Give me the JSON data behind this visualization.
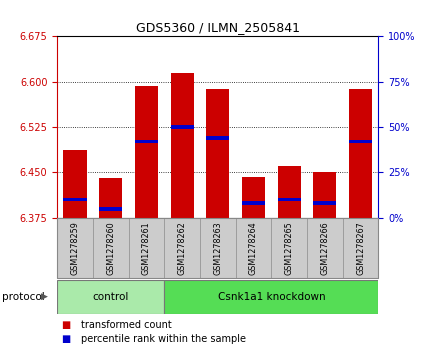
{
  "title": "GDS5360 / ILMN_2505841",
  "samples": [
    "GSM1278259",
    "GSM1278260",
    "GSM1278261",
    "GSM1278262",
    "GSM1278263",
    "GSM1278264",
    "GSM1278265",
    "GSM1278266",
    "GSM1278267"
  ],
  "transformed_counts": [
    6.487,
    6.44,
    6.593,
    6.614,
    6.588,
    6.443,
    6.461,
    6.45,
    6.588
  ],
  "percentile_ranks": [
    10,
    5,
    42,
    50,
    44,
    8,
    10,
    8,
    42
  ],
  "y_min": 6.375,
  "y_max": 6.675,
  "y_ticks": [
    6.375,
    6.45,
    6.525,
    6.6,
    6.675
  ],
  "right_y_ticks": [
    0,
    25,
    50,
    75,
    100
  ],
  "bar_color": "#cc0000",
  "percentile_color": "#0000cc",
  "control_label": "control",
  "knockdown_label": "Csnk1a1 knockdown",
  "protocol_label": "protocol",
  "group_color_control": "#aaeaaa",
  "group_color_knockdown": "#55dd55",
  "legend_red": "transformed count",
  "legend_blue": "percentile rank within the sample",
  "tick_color_left": "#cc0000",
  "tick_color_right": "#0000cc",
  "bg_color": "#ffffff",
  "x_tick_bg": "#cccccc"
}
